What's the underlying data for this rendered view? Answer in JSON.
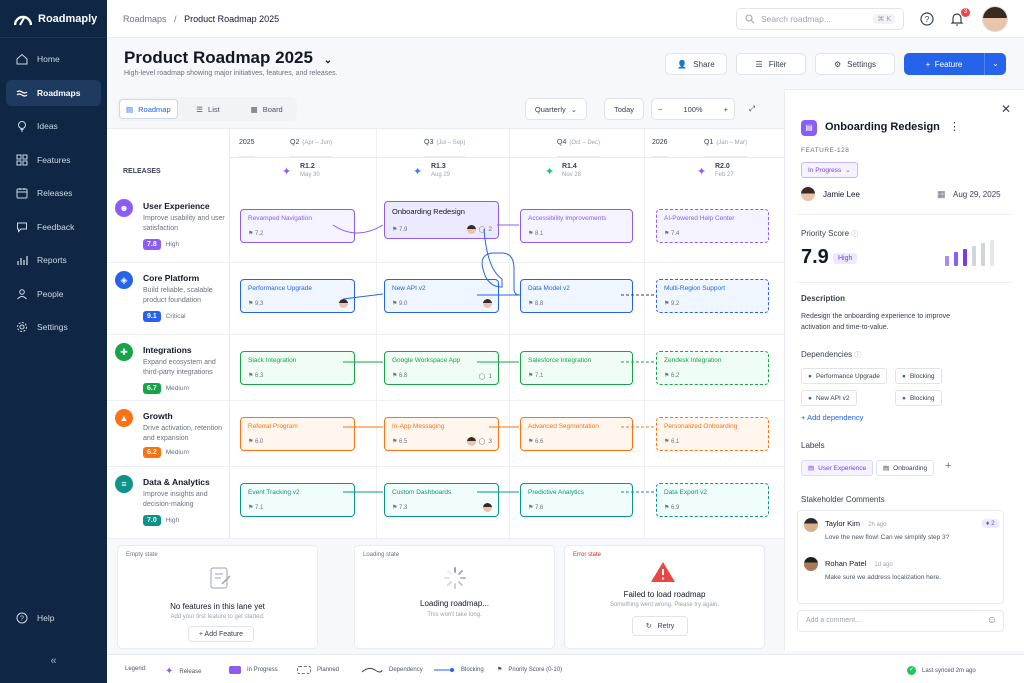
{
  "app": {
    "name": "Roadmaply"
  },
  "nav": {
    "items": [
      {
        "label": "Home",
        "icon": "home-icon"
      },
      {
        "label": "Roadmaps",
        "icon": "roadmap-icon"
      },
      {
        "label": "Ideas",
        "icon": "lightbulb-icon"
      },
      {
        "label": "Features",
        "icon": "grid-icon"
      },
      {
        "label": "Releases",
        "icon": "calendar-icon"
      },
      {
        "label": "Feedback",
        "icon": "chat-icon"
      },
      {
        "label": "Reports",
        "icon": "bar-chart-icon"
      },
      {
        "label": "People",
        "icon": "person-icon"
      },
      {
        "label": "Settings",
        "icon": "gear-icon"
      }
    ],
    "help": "Help",
    "collapse": "«"
  },
  "breadcrumb": {
    "root": "Roadmaps",
    "sep": "/",
    "current": "Product Roadmap 2025"
  },
  "search": {
    "placeholder": "Search roadmap...",
    "shortcut": "⌘ K"
  },
  "notifications": {
    "count": "3"
  },
  "page": {
    "title": "Product Roadmap 2025",
    "subtitle": "High-level roadmap showing major initiatives, features, and releases."
  },
  "header_buttons": {
    "share": "Share",
    "filter": "Filter",
    "settings": "Settings",
    "feature": "Feature"
  },
  "views": {
    "roadmap": "Roadmap",
    "list": "List",
    "board": "Board"
  },
  "controls": {
    "period": "Quarterly",
    "today": "Today",
    "zoom": "100%"
  },
  "timeline": {
    "year1": "2025",
    "year2": "2026",
    "releases_label": "RELEASES",
    "quarters": [
      {
        "name": "Q2",
        "range": "(Apr – Jun)"
      },
      {
        "name": "Q3",
        "range": "(Jul – Sep)"
      },
      {
        "name": "Q4",
        "range": "(Oct – Dec)"
      },
      {
        "name": "Q1",
        "range": "(Jan – Mar)"
      }
    ],
    "releases": [
      {
        "name": "R1.2",
        "date": "May 30",
        "color": "#8b5cf6"
      },
      {
        "name": "R1.3",
        "date": "Aug 29",
        "color": "#3b82f6"
      },
      {
        "name": "R1.4",
        "date": "Nov 28",
        "color": "#22c55e"
      },
      {
        "name": "R2.0",
        "date": "Feb 27",
        "color": "#8b5cf6"
      }
    ]
  },
  "lanes": [
    {
      "name": "User Experience",
      "desc": "Improve usability and user satisfaction",
      "score": "7.8",
      "level": "High",
      "color": "#8b5cf6",
      "icon": "person-icon",
      "cards": [
        {
          "title": "Revamped Navigation",
          "score": "7.2"
        },
        {
          "title": "Onboarding Redesign",
          "score": "7.9",
          "comments": "2"
        },
        {
          "title": "Accessibility Improvements",
          "score": "8.1"
        },
        {
          "title": "AI-Powered Help Center",
          "score": "7.4"
        }
      ]
    },
    {
      "name": "Core Platform",
      "desc": "Build reliable, scalable product foundation",
      "score": "9.1",
      "level": "Critical",
      "color": "#2563eb",
      "icon": "layers-icon",
      "cards": [
        {
          "title": "Performance Upgrade",
          "score": "9.3"
        },
        {
          "title": "New API v2",
          "score": "9.0"
        },
        {
          "title": "Data Model v2",
          "score": "8.8"
        },
        {
          "title": "Multi-Region Support",
          "score": "9.2"
        }
      ]
    },
    {
      "name": "Integrations",
      "desc": "Expand ecosystem and third-party integrations",
      "score": "6.7",
      "level": "Medium",
      "color": "#16a34a",
      "icon": "puzzle-icon",
      "cards": [
        {
          "title": "Slack Integration",
          "score": "6.3"
        },
        {
          "title": "Google Workspace App",
          "score": "6.8",
          "comments": "1"
        },
        {
          "title": "Salesforce Integration",
          "score": "7.1"
        },
        {
          "title": "Zendesk Integration",
          "score": "6.2"
        }
      ]
    },
    {
      "name": "Growth",
      "desc": "Drive activation, retention and expansion",
      "score": "6.2",
      "level": "Medium",
      "color": "#f97316",
      "icon": "growth-icon",
      "cards": [
        {
          "title": "Referral Program",
          "score": "6.0"
        },
        {
          "title": "In-App Messaging",
          "score": "6.5",
          "comments": "3"
        },
        {
          "title": "Advanced Segmentation",
          "score": "6.6"
        },
        {
          "title": "Personalized Onboarding",
          "score": "6.1"
        }
      ]
    },
    {
      "name": "Data & Analytics",
      "desc": "Improve insights and decision-making",
      "score": "7.0",
      "level": "High",
      "color": "#0d9488",
      "icon": "database-icon",
      "cards": [
        {
          "title": "Event Tracking v2",
          "score": "7.1"
        },
        {
          "title": "Custom Dashboards",
          "score": "7.3"
        },
        {
          "title": "Predictive Analytics",
          "score": "7.6"
        },
        {
          "title": "Data Export v2",
          "score": "6.9"
        }
      ]
    }
  ],
  "states": {
    "empty": {
      "label": "Empty state",
      "title": "No features in this lane yet",
      "sub": "Add your first feature to get started.",
      "button": "+ Add Feature"
    },
    "loading": {
      "label": "Loading state",
      "title": "Loading roadmap...",
      "sub": "This won't take long."
    },
    "error": {
      "label": "Error state",
      "title": "Failed to load roadmap",
      "sub": "Something went wrong. Please try again.",
      "button": "Retry"
    }
  },
  "legend": {
    "label": "Legend:",
    "release": "Release",
    "in_progress": "In Progress",
    "planned": "Planned",
    "dependency": "Dependency",
    "blocking": "Blocking",
    "priority": "Priority Score (0-10)",
    "synced": "Last synced 2m ago"
  },
  "panel": {
    "title": "Onboarding Redesign",
    "id": "FEATURE-128",
    "status": "In Progress",
    "owner": "Jamie Lee",
    "date": "Aug 29, 2025",
    "priority_label": "Priority Score",
    "priority": "7.9",
    "priority_level": "High",
    "description_label": "Description",
    "description": "Redesign the onboarding experience to improve activation and time-to-value.",
    "dependencies_label": "Dependencies",
    "dependencies": [
      {
        "name": "Performance Upgrade",
        "type": "Blocking"
      },
      {
        "name": "New API v2",
        "type": "Blocking"
      }
    ],
    "add_dependency": "Add dependency",
    "labels_label": "Labels",
    "labels": [
      "User Experience",
      "Onboarding"
    ],
    "comments_label": "Stakeholder Comments",
    "comments": [
      {
        "author": "Taylor Kim",
        "time": "2h ago",
        "text": "Love the new flow! Can we simplify step 3?",
        "reactions": "2"
      },
      {
        "author": "Rohan Patel",
        "time": "1d ago",
        "text": "Make sure we address localization here."
      }
    ],
    "comment_placeholder": "Add a comment..."
  }
}
